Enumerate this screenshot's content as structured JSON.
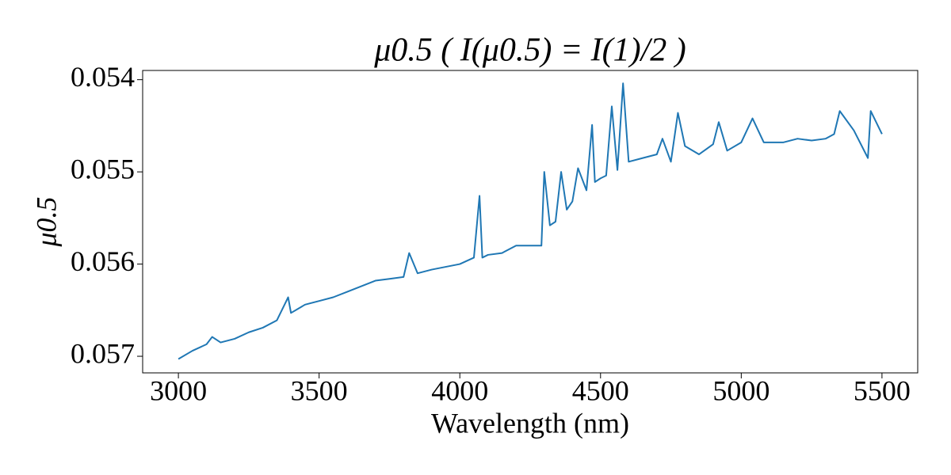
{
  "chart_data": {
    "type": "line",
    "title": "μ0.5  ( I(μ0.5) = I(1)/2 )",
    "xlabel": "Wavelength (nm)",
    "ylabel": "μ0.5",
    "x": [
      3000,
      3050,
      3100,
      3120,
      3150,
      3200,
      3250,
      3300,
      3350,
      3390,
      3400,
      3450,
      3500,
      3550,
      3600,
      3650,
      3700,
      3750,
      3800,
      3820,
      3850,
      3900,
      3950,
      4000,
      4050,
      4070,
      4080,
      4100,
      4150,
      4200,
      4250,
      4290,
      4300,
      4320,
      4340,
      4360,
      4380,
      4400,
      4420,
      4450,
      4470,
      4480,
      4500,
      4520,
      4540,
      4560,
      4580,
      4600,
      4650,
      4700,
      4720,
      4750,
      4775,
      4800,
      4850,
      4900,
      4920,
      4950,
      5000,
      5040,
      5080,
      5150,
      5200,
      5250,
      5300,
      5330,
      5350,
      5400,
      5450,
      5460,
      5500
    ],
    "series": [
      {
        "name": "μ0.5",
        "color": "#1f77b4",
        "values": [
          0.05703,
          0.05694,
          0.05687,
          0.05679,
          0.05685,
          0.05681,
          0.05674,
          0.05669,
          0.05661,
          0.05636,
          0.05653,
          0.05644,
          0.0564,
          0.05636,
          0.0563,
          0.05624,
          0.05618,
          0.05616,
          0.05614,
          0.05588,
          0.0561,
          0.05606,
          0.05603,
          0.056,
          0.05593,
          0.05526,
          0.05593,
          0.0559,
          0.05588,
          0.0558,
          0.0558,
          0.0558,
          0.055,
          0.05558,
          0.05554,
          0.055,
          0.05541,
          0.05532,
          0.05496,
          0.0552,
          0.05449,
          0.05511,
          0.05507,
          0.05504,
          0.05429,
          0.05498,
          0.05404,
          0.05489,
          0.05485,
          0.05481,
          0.05464,
          0.05489,
          0.05436,
          0.05472,
          0.05481,
          0.0547,
          0.05446,
          0.05477,
          0.05468,
          0.05442,
          0.05468,
          0.05468,
          0.05464,
          0.05466,
          0.05464,
          0.05459,
          0.05434,
          0.05455,
          0.05485,
          0.05434,
          0.05459
        ]
      }
    ],
    "xlim": [
      2873,
      5627
    ],
    "xticks": [
      3000,
      3500,
      4000,
      4500,
      5000,
      5500
    ],
    "ylim": [
      0.05718,
      0.0539
    ],
    "yticks": [
      0.054,
      0.055,
      0.056,
      0.057
    ]
  }
}
